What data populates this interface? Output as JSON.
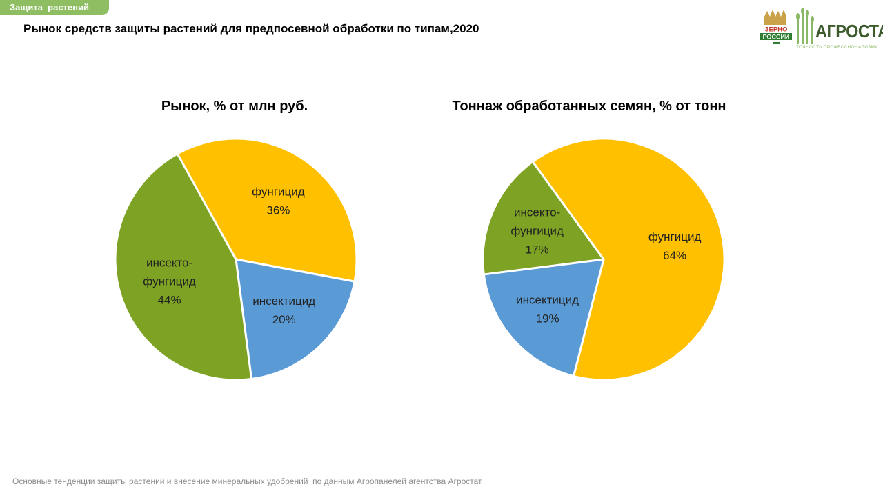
{
  "section_tag": "Защита  растений",
  "slide_title": "Рынок средств защиты растений для предпосевной обработки по типам,2020",
  "logo": {
    "brand": "АГРОСТАТ",
    "tagline": "ТОЧНОСТЬ ПРОФЕССИОНАЛИЗМА",
    "badge_lines": [
      "ЗЕРНО",
      "РОССИИ"
    ]
  },
  "colors": {
    "fungicide": "#ffc000",
    "insecticide": "#5b9bd5",
    "insecto_fungicide": "#7ea324"
  },
  "chart_data": [
    {
      "type": "pie",
      "title": "Рынок, % от млн руб.",
      "slices": [
        {
          "label_lines": [
            "фунгицид"
          ],
          "value_label": "36%",
          "value": 36,
          "color": "#ffc000"
        },
        {
          "label_lines": [
            "инсектицид"
          ],
          "value_label": "20%",
          "value": 20,
          "color": "#5b9bd5"
        },
        {
          "label_lines": [
            "инсекто-",
            "фунгицид"
          ],
          "value_label": "44%",
          "value": 44,
          "color": "#7ea324"
        }
      ]
    },
    {
      "type": "pie",
      "title": "Тоннаж обработанных семян, % от тонн",
      "slices": [
        {
          "label_lines": [
            "фунгицид"
          ],
          "value_label": "64%",
          "value": 64,
          "color": "#ffc000"
        },
        {
          "label_lines": [
            "инсектицид"
          ],
          "value_label": "19%",
          "value": 19,
          "color": "#5b9bd5"
        },
        {
          "label_lines": [
            "инсекто-",
            "фунгицид"
          ],
          "value_label": "17%",
          "value": 17,
          "color": "#7ea324"
        }
      ]
    }
  ],
  "footer": "Основные тенденции защиты растений и внесение минеральных удобрений  по данным Агропанелей агентства Агростат"
}
